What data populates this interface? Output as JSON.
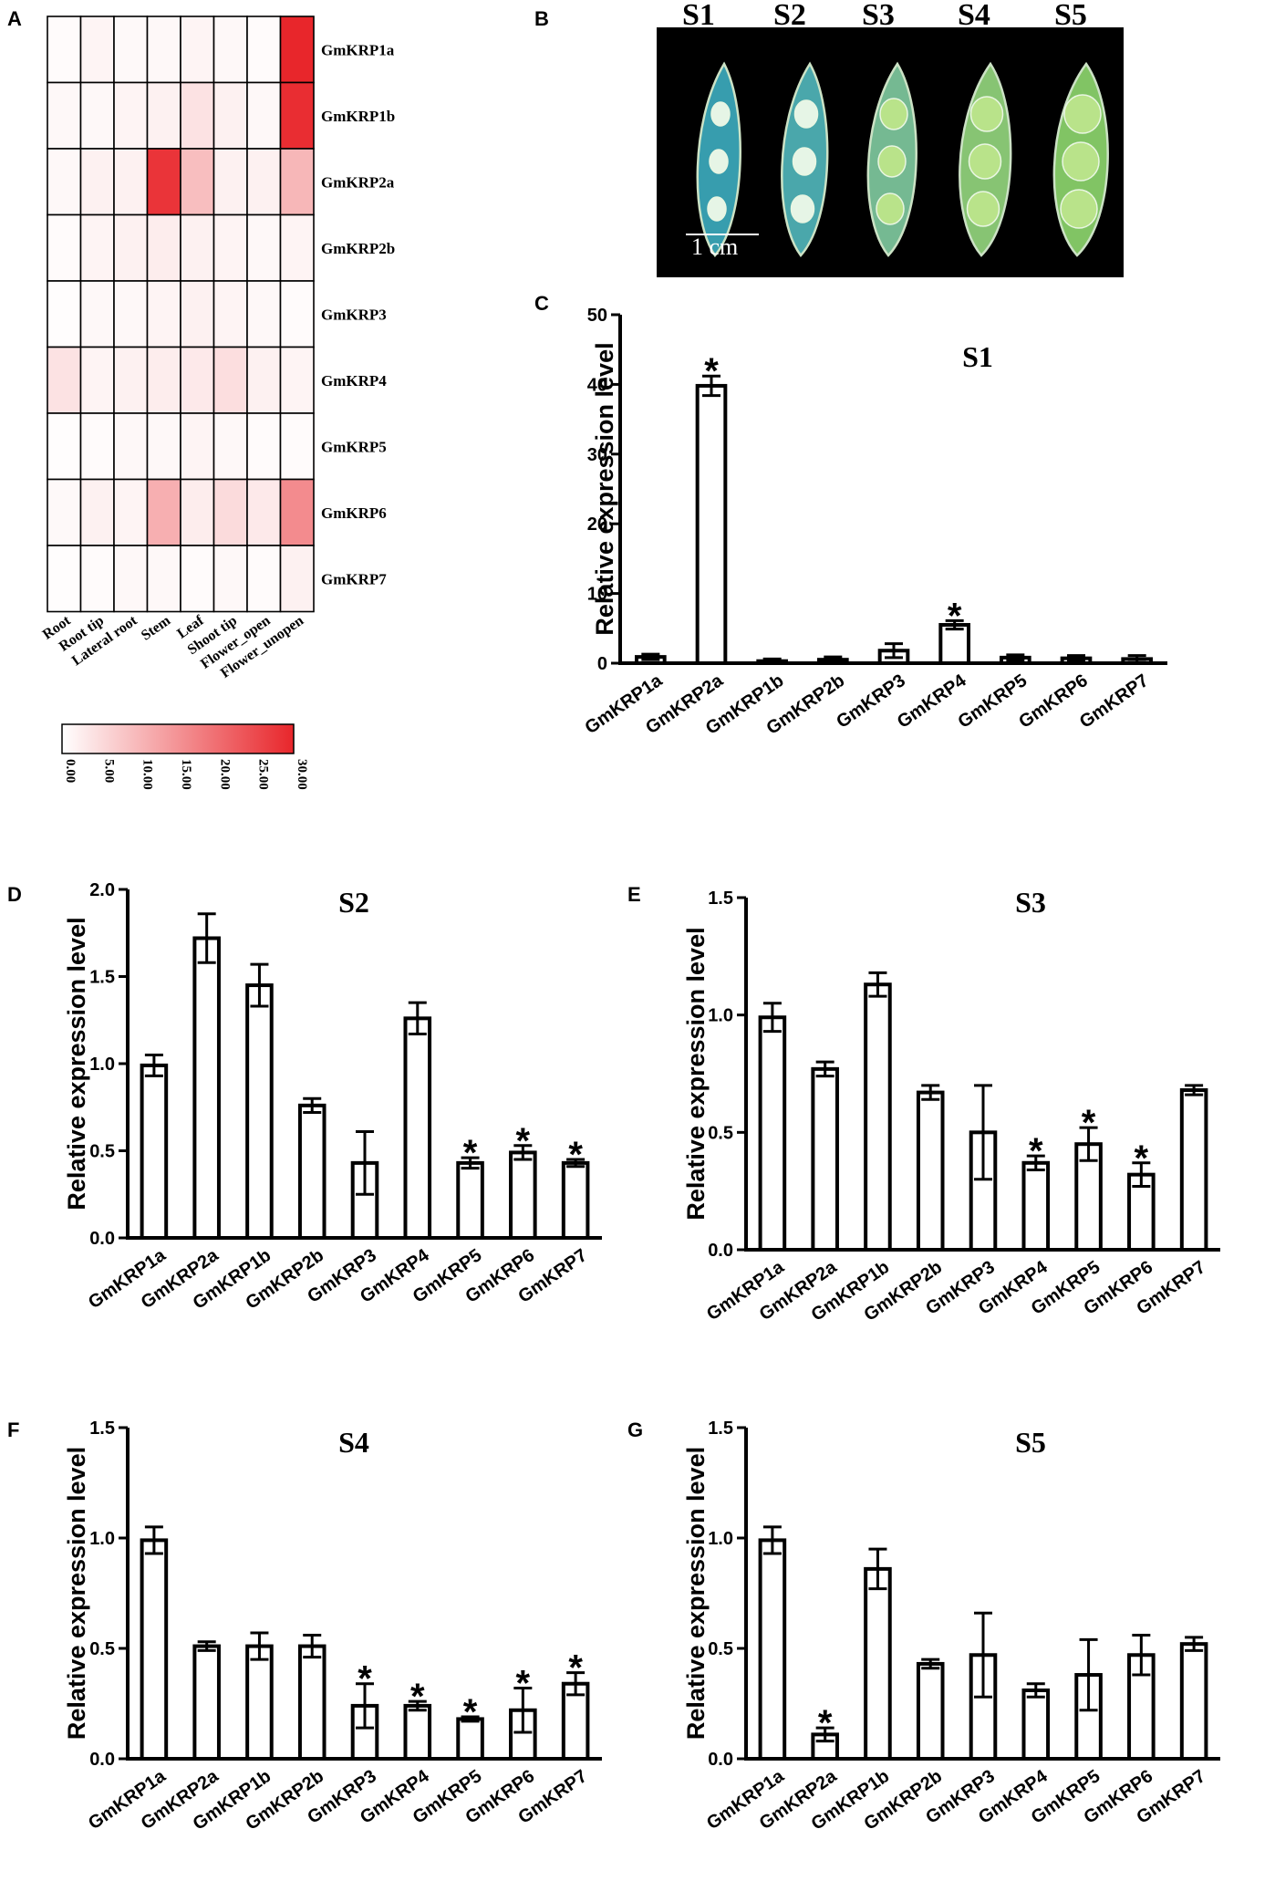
{
  "panels": {
    "a": "A",
    "b": "B",
    "c": "C",
    "d": "D",
    "e": "E",
    "f": "F",
    "g": "G"
  },
  "photo": {
    "stages": [
      "S1",
      "S2",
      "S3",
      "S4",
      "S5"
    ],
    "scale_bar_label": "1 cm",
    "background": "#000000",
    "pod_colors": [
      "#3aa6b8",
      "#4fb0b5",
      "#7cc39a",
      "#8fcf7a",
      "#88cf6a"
    ]
  },
  "colors": {
    "bar_fill": "#ffffff",
    "bar_stroke": "#000000",
    "heat_max": "#e8262b",
    "heat_min": "#ffffff"
  },
  "chart_data": [
    {
      "id": "heatmap",
      "type": "heatmap",
      "rows": [
        "GmKRP1a",
        "GmKRP1b",
        "GmKRP2a",
        "GmKRP2b",
        "GmKRP3",
        "GmKRP4",
        "GmKRP5",
        "GmKRP6",
        "GmKRP7"
      ],
      "columns": [
        "Root",
        "Root tip",
        "Lateral root",
        "Stem",
        "Leaf",
        "Shoot tip",
        "Flower_open",
        "Flower_unopen"
      ],
      "values": [
        [
          0.5,
          1.5,
          0.8,
          1.0,
          1.5,
          1.0,
          0.5,
          30.0
        ],
        [
          1.0,
          1.0,
          1.5,
          2.0,
          4.0,
          2.0,
          1.0,
          29.0
        ],
        [
          1.0,
          2.0,
          2.0,
          28.0,
          9.0,
          2.0,
          2.0,
          10.0
        ],
        [
          0.5,
          1.5,
          2.0,
          2.5,
          2.0,
          1.5,
          1.0,
          1.5
        ],
        [
          0.3,
          1.0,
          1.0,
          1.5,
          2.0,
          1.5,
          1.0,
          0.5
        ],
        [
          4.0,
          1.5,
          2.0,
          2.5,
          3.0,
          4.5,
          2.0,
          1.5
        ],
        [
          0.3,
          0.5,
          1.0,
          1.0,
          1.5,
          1.0,
          0.5,
          0.5
        ],
        [
          0.8,
          2.0,
          1.5,
          11.0,
          2.5,
          5.0,
          3.0,
          16.0
        ],
        [
          0.3,
          0.5,
          1.0,
          1.0,
          0.5,
          1.0,
          0.5,
          2.0
        ]
      ],
      "colorbar": {
        "min": 0,
        "max": 30,
        "ticks": [
          "0.00",
          "5.00",
          "10.00",
          "15.00",
          "20.00",
          "25.00",
          "30.00"
        ]
      }
    },
    {
      "id": "S1",
      "type": "bar",
      "title": "S1",
      "ylabel": "Relative expression level",
      "categories": [
        "GmKRP1a",
        "GmKRP2a",
        "GmKRP1b",
        "GmKRP2b",
        "GmKRP3",
        "GmKRP4",
        "GmKRP5",
        "GmKRP6",
        "GmKRP7"
      ],
      "values": [
        0.9,
        39.8,
        0.3,
        0.5,
        1.8,
        5.5,
        0.8,
        0.7,
        0.6
      ],
      "errors": [
        0.4,
        1.4,
        0.3,
        0.4,
        1.0,
        0.6,
        0.4,
        0.4,
        0.5
      ],
      "significant": [
        false,
        true,
        false,
        false,
        false,
        true,
        false,
        false,
        false
      ],
      "ylim": [
        0,
        50
      ],
      "yticks": [
        "0",
        "10",
        "20",
        "30",
        "40",
        "50"
      ],
      "star": "*"
    },
    {
      "id": "S2",
      "type": "bar",
      "title": "S2",
      "ylabel": "Relative expression level",
      "categories": [
        "GmKRP1a",
        "GmKRP2a",
        "GmKRP1b",
        "GmKRP2b",
        "GmKRP3",
        "GmKRP4",
        "GmKRP5",
        "GmKRP6",
        "GmKRP7"
      ],
      "values": [
        0.99,
        1.72,
        1.45,
        0.76,
        0.43,
        1.26,
        0.43,
        0.49,
        0.43
      ],
      "errors": [
        0.06,
        0.14,
        0.12,
        0.04,
        0.18,
        0.09,
        0.03,
        0.04,
        0.02
      ],
      "significant": [
        false,
        false,
        false,
        false,
        false,
        false,
        true,
        true,
        true
      ],
      "ylim": [
        0,
        2.0
      ],
      "yticks": [
        "0.0",
        "0.5",
        "1.0",
        "1.5",
        "2.0"
      ],
      "star": "*"
    },
    {
      "id": "S3",
      "type": "bar",
      "title": "S3",
      "ylabel": "Relative expression level",
      "categories": [
        "GmKRP1a",
        "GmKRP2a",
        "GmKRP1b",
        "GmKRP2b",
        "GmKRP3",
        "GmKRP4",
        "GmKRP5",
        "GmKRP6",
        "GmKRP7"
      ],
      "values": [
        0.99,
        0.77,
        1.13,
        0.67,
        0.5,
        0.37,
        0.45,
        0.32,
        0.68
      ],
      "errors": [
        0.06,
        0.03,
        0.05,
        0.03,
        0.2,
        0.03,
        0.07,
        0.05,
        0.02
      ],
      "significant": [
        false,
        false,
        false,
        false,
        false,
        true,
        true,
        true,
        false
      ],
      "ylim": [
        0,
        1.5
      ],
      "yticks": [
        "0.0",
        "0.5",
        "1.0",
        "1.5"
      ],
      "star": "*"
    },
    {
      "id": "S4",
      "type": "bar",
      "title": "S4",
      "ylabel": "Relative expression level",
      "categories": [
        "GmKRP1a",
        "GmKRP2a",
        "GmKRP1b",
        "GmKRP2b",
        "GmKRP3",
        "GmKRP4",
        "GmKRP5",
        "GmKRP6",
        "GmKRP7"
      ],
      "values": [
        0.99,
        0.51,
        0.51,
        0.51,
        0.24,
        0.24,
        0.18,
        0.22,
        0.34
      ],
      "errors": [
        0.06,
        0.02,
        0.06,
        0.05,
        0.1,
        0.02,
        0.01,
        0.1,
        0.05
      ],
      "significant": [
        false,
        false,
        false,
        false,
        true,
        true,
        true,
        true,
        true
      ],
      "ylim": [
        0,
        1.5
      ],
      "yticks": [
        "0.0",
        "0.5",
        "1.0",
        "1.5"
      ],
      "star": "*"
    },
    {
      "id": "S5",
      "type": "bar",
      "title": "S5",
      "ylabel": "Relative expression level",
      "categories": [
        "GmKRP1a",
        "GmKRP2a",
        "GmKRP1b",
        "GmKRP2b",
        "GmKRP3",
        "GmKRP4",
        "GmKRP5",
        "GmKRP6",
        "GmKRP7"
      ],
      "values": [
        0.99,
        0.11,
        0.86,
        0.43,
        0.47,
        0.31,
        0.38,
        0.47,
        0.52
      ],
      "errors": [
        0.06,
        0.03,
        0.09,
        0.02,
        0.19,
        0.03,
        0.16,
        0.09,
        0.03
      ],
      "significant": [
        false,
        true,
        false,
        false,
        false,
        false,
        false,
        false,
        false
      ],
      "ylim": [
        0,
        1.5
      ],
      "yticks": [
        "0.0",
        "0.5",
        "1.0",
        "1.5"
      ],
      "star": "*"
    }
  ]
}
